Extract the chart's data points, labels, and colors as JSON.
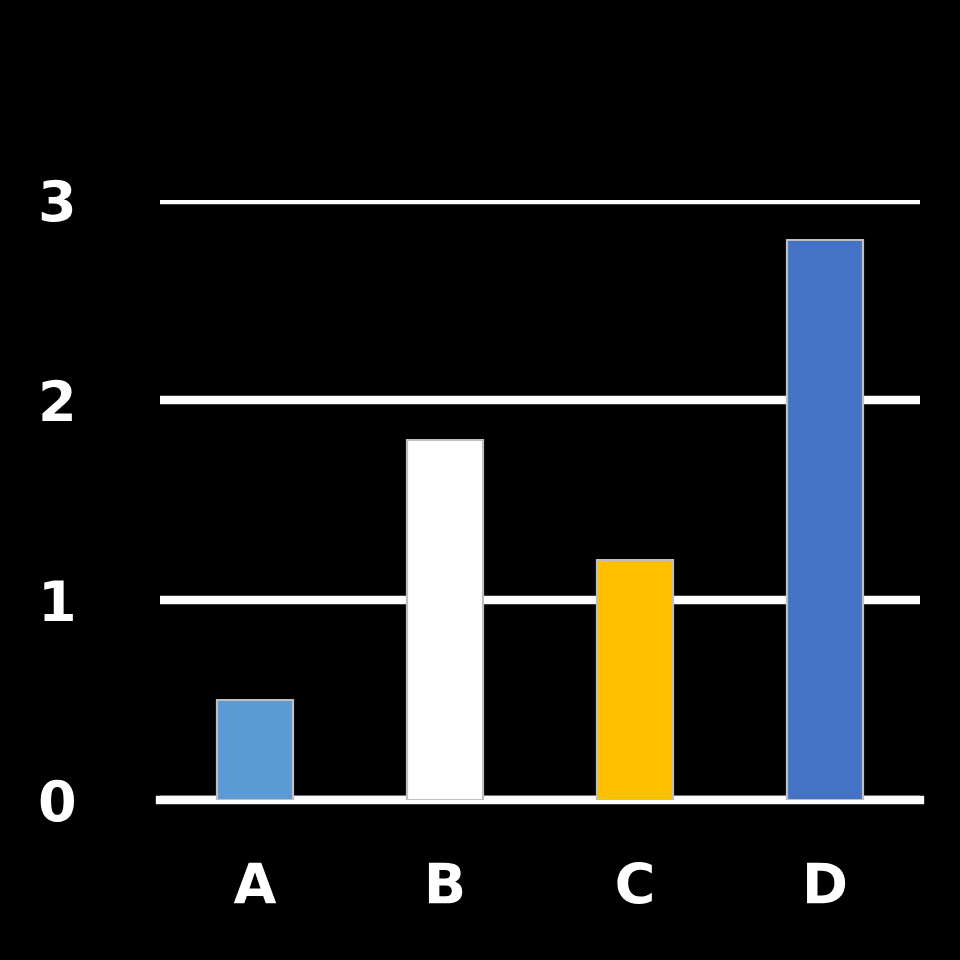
{
  "chart_data": {
    "type": "bar",
    "categories": [
      "A",
      "B",
      "C",
      "D"
    ],
    "values": [
      0.5,
      1.8,
      1.2,
      2.8
    ],
    "colors": [
      "#5b9bd5",
      "#ffffff",
      "#ffc000",
      "#4472c4"
    ],
    "ylim": [
      0,
      3
    ],
    "yticks": [
      0,
      1,
      2,
      3
    ],
    "grid": "y"
  }
}
